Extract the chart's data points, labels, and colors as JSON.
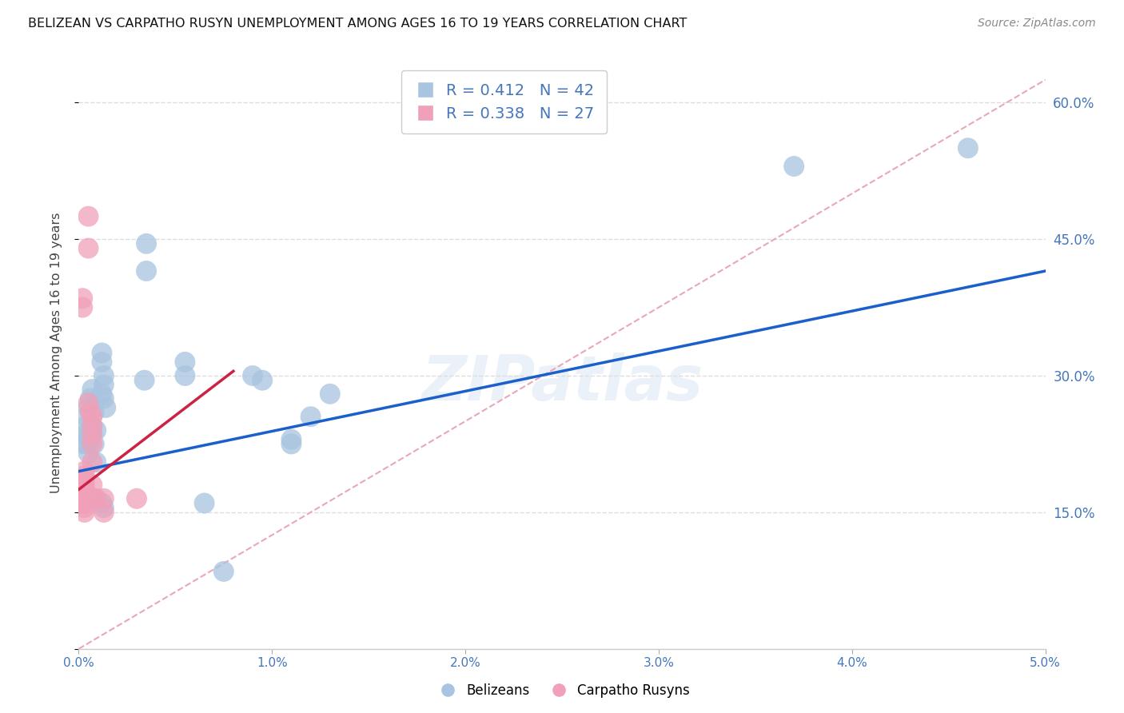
{
  "title": "BELIZEAN VS CARPATHO RUSYN UNEMPLOYMENT AMONG AGES 16 TO 19 YEARS CORRELATION CHART",
  "source": "Source: ZipAtlas.com",
  "ylabel": "Unemployment Among Ages 16 to 19 years",
  "xlim": [
    0.0,
    0.05
  ],
  "ylim": [
    0.0,
    0.65
  ],
  "yticks": [
    0.0,
    0.15,
    0.3,
    0.45,
    0.6
  ],
  "ytick_labels": [
    "",
    "15.0%",
    "30.0%",
    "45.0%",
    "60.0%"
  ],
  "xticks": [
    0.0,
    0.01,
    0.02,
    0.03,
    0.04,
    0.05
  ],
  "xtick_labels": [
    "0.0%",
    "1.0%",
    "2.0%",
    "3.0%",
    "4.0%",
    "5.0%"
  ],
  "legend_r_blue": "R = 0.412",
  "legend_n_blue": "N = 42",
  "legend_r_pink": "R = 0.338",
  "legend_n_pink": "N = 27",
  "blue_scatter": [
    [
      0.0003,
      0.225
    ],
    [
      0.0003,
      0.235
    ],
    [
      0.0004,
      0.245
    ],
    [
      0.0004,
      0.255
    ],
    [
      0.0005,
      0.265
    ],
    [
      0.0005,
      0.235
    ],
    [
      0.0005,
      0.215
    ],
    [
      0.0004,
      0.225
    ],
    [
      0.0006,
      0.23
    ],
    [
      0.0007,
      0.24
    ],
    [
      0.0007,
      0.285
    ],
    [
      0.0006,
      0.275
    ],
    [
      0.0008,
      0.27
    ],
    [
      0.0008,
      0.26
    ],
    [
      0.0007,
      0.245
    ],
    [
      0.0009,
      0.24
    ],
    [
      0.0008,
      0.225
    ],
    [
      0.0009,
      0.205
    ],
    [
      0.0012,
      0.325
    ],
    [
      0.0012,
      0.315
    ],
    [
      0.0013,
      0.3
    ],
    [
      0.0013,
      0.29
    ],
    [
      0.0012,
      0.28
    ],
    [
      0.0013,
      0.275
    ],
    [
      0.0014,
      0.265
    ],
    [
      0.0012,
      0.16
    ],
    [
      0.0013,
      0.155
    ],
    [
      0.0035,
      0.445
    ],
    [
      0.0035,
      0.415
    ],
    [
      0.0034,
      0.295
    ],
    [
      0.0055,
      0.315
    ],
    [
      0.0055,
      0.3
    ],
    [
      0.0065,
      0.16
    ],
    [
      0.0075,
      0.085
    ],
    [
      0.009,
      0.3
    ],
    [
      0.0095,
      0.295
    ],
    [
      0.011,
      0.23
    ],
    [
      0.011,
      0.225
    ],
    [
      0.012,
      0.255
    ],
    [
      0.013,
      0.28
    ],
    [
      0.037,
      0.53
    ],
    [
      0.046,
      0.55
    ]
  ],
  "pink_scatter": [
    [
      0.0002,
      0.385
    ],
    [
      0.0002,
      0.375
    ],
    [
      0.0003,
      0.195
    ],
    [
      0.0003,
      0.19
    ],
    [
      0.0003,
      0.185
    ],
    [
      0.0003,
      0.178
    ],
    [
      0.0003,
      0.175
    ],
    [
      0.0003,
      0.17
    ],
    [
      0.0003,
      0.163
    ],
    [
      0.0003,
      0.16
    ],
    [
      0.0003,
      0.155
    ],
    [
      0.0003,
      0.15
    ],
    [
      0.0005,
      0.475
    ],
    [
      0.0005,
      0.44
    ],
    [
      0.0005,
      0.27
    ],
    [
      0.0006,
      0.26
    ],
    [
      0.0007,
      0.255
    ],
    [
      0.0007,
      0.245
    ],
    [
      0.0007,
      0.235
    ],
    [
      0.0007,
      0.225
    ],
    [
      0.0007,
      0.205
    ],
    [
      0.0007,
      0.18
    ],
    [
      0.0008,
      0.165
    ],
    [
      0.0009,
      0.165
    ],
    [
      0.0013,
      0.165
    ],
    [
      0.0013,
      0.15
    ],
    [
      0.003,
      0.165
    ]
  ],
  "blue_line_x": [
    0.0,
    0.05
  ],
  "blue_line_y": [
    0.195,
    0.415
  ],
  "pink_line_x": [
    0.0,
    0.008
  ],
  "pink_line_y": [
    0.175,
    0.305
  ],
  "diag_line_x": [
    0.0,
    0.05
  ],
  "diag_line_y": [
    0.0,
    0.625
  ],
  "scatter_size": 350,
  "blue_color": "#a8c4e0",
  "pink_color": "#f0a0b8",
  "blue_line_color": "#1a5fcc",
  "pink_line_color": "#cc2244",
  "diag_line_color": "#e8a8b8",
  "watermark": "ZIPatlas",
  "background_color": "#ffffff",
  "tick_color": "#4477bb",
  "grid_color": "#dddddd"
}
